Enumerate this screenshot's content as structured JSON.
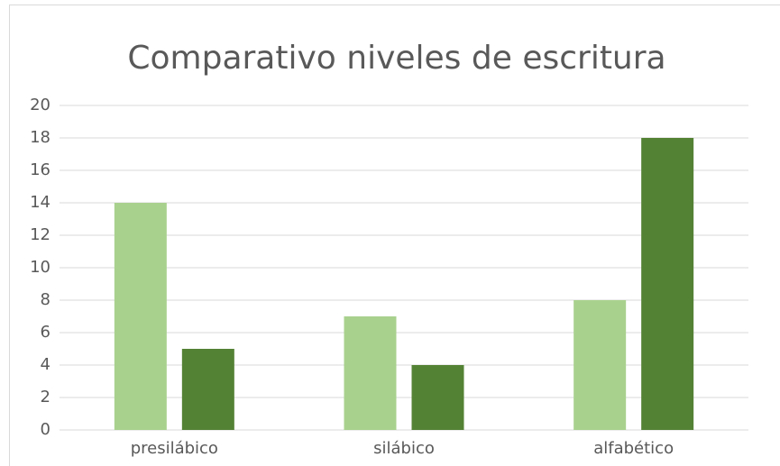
{
  "chart_data": {
    "type": "bar",
    "title": "Comparativo niveles de escritura",
    "categories": [
      "presilábico",
      "silábico",
      "alfabético"
    ],
    "series": [
      {
        "color": "#a9d18e",
        "values": [
          14,
          7,
          8
        ]
      },
      {
        "color": "#548235",
        "values": [
          5,
          4,
          18
        ]
      }
    ],
    "ylim": [
      0,
      20
    ],
    "yticks": [
      0,
      2,
      4,
      6,
      8,
      10,
      12,
      14,
      16,
      18,
      20
    ],
    "grid": true
  }
}
